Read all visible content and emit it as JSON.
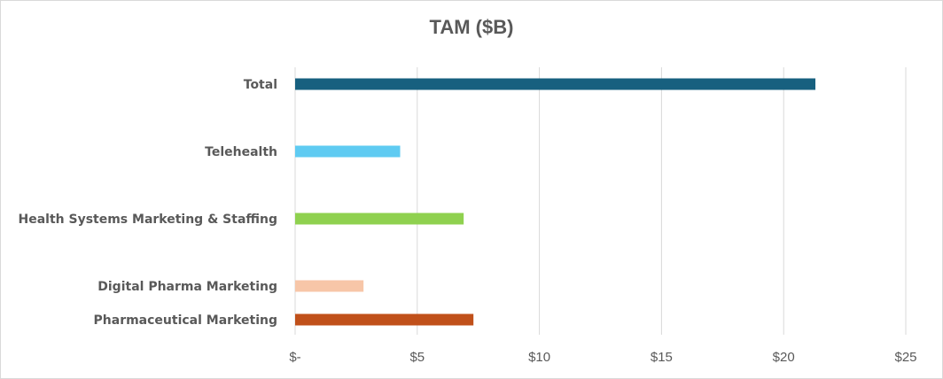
{
  "chart_data": {
    "type": "bar",
    "orientation": "horizontal",
    "title": "TAM ($B)",
    "xlabel": "",
    "ylabel": "",
    "xlim": [
      0,
      25
    ],
    "grid": "vertical",
    "ticks": [
      {
        "value": 0,
        "label": "$-"
      },
      {
        "value": 5,
        "label": "$5"
      },
      {
        "value": 10,
        "label": "$10"
      },
      {
        "value": 15,
        "label": "$15"
      },
      {
        "value": 20,
        "label": "$20"
      },
      {
        "value": 25,
        "label": "$25"
      }
    ],
    "bars": [
      {
        "category": "Total",
        "value": 21.3,
        "color": "#17607f"
      },
      {
        "category": "Telehealth",
        "value": 4.3,
        "color": "#5fcbf2"
      },
      {
        "category": "Health Systems Marketing & Staffing",
        "value": 6.9,
        "color": "#8fd14f"
      },
      {
        "category": "Digital Pharma Marketing",
        "value": 2.8,
        "color": "#f7c6a8"
      },
      {
        "category": "Pharmaceutical Marketing",
        "value": 7.3,
        "color": "#c0501a"
      }
    ]
  }
}
